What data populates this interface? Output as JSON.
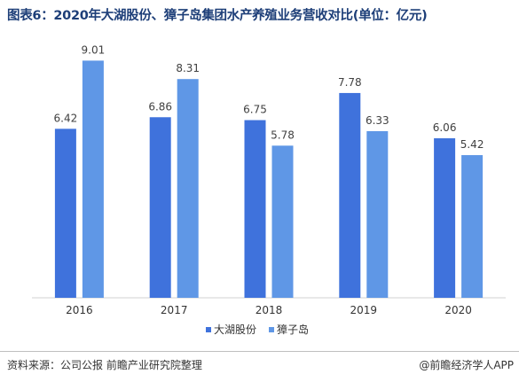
{
  "title": "图表6：2020年大湖股份、獐子岛集团水产养殖业务营收对比(单位：亿元)",
  "source": "资料来源：公司公报 前瞻产业研究院整理",
  "brand": "@前瞻经济学人APP",
  "brand_icon": "weibo-style-icon",
  "colors": {
    "series1": "#3f72dc",
    "series2": "#5f97e6",
    "axis": "#d0d0d0",
    "label": "#404040",
    "title": "#1d3e78"
  },
  "chart_data": {
    "type": "bar",
    "title": "图表6：2020年大湖股份、獐子岛集团水产养殖业务营收对比(单位：亿元)",
    "xlabel": "",
    "ylabel": "",
    "categories": [
      "2016",
      "2017",
      "2018",
      "2019",
      "2020"
    ],
    "series": [
      {
        "name": "大湖股份",
        "values": [
          6.42,
          6.86,
          6.75,
          7.78,
          6.06
        ],
        "labels": [
          "6.42",
          "6.86",
          "6.75",
          "7.78",
          "6.06"
        ]
      },
      {
        "name": "獐子岛",
        "values": [
          9.01,
          8.31,
          5.78,
          6.33,
          5.42
        ],
        "labels": [
          "9.01",
          "8.31",
          "5.78",
          "6.33",
          "5.42"
        ]
      }
    ],
    "ylim": [
      0,
      10
    ],
    "grid": false,
    "legend": "bottom-center"
  }
}
